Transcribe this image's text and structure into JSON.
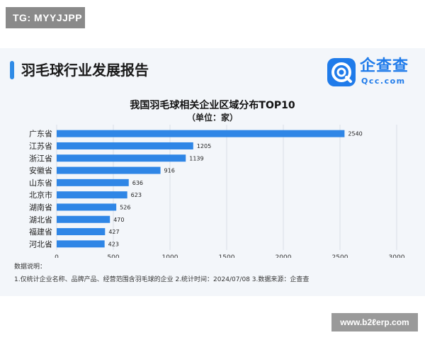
{
  "watermark_top": "TG: MYYJJPP",
  "watermark_bottom": "www.b2ℓerp.com",
  "header": {
    "title": "羽毛球行业发展报告"
  },
  "logo": {
    "name": "企查查",
    "sub": "Qcc.com"
  },
  "notes": {
    "heading": "数据说明：",
    "line": "1.仅统计企业名称、品牌产品、经营范围含羽毛球的企业  2.统计时间：2024/07/08  3.数据来源：企查查"
  },
  "colors": {
    "bar": "#2f86e6",
    "accent": "#2f8be6",
    "grid": "#d9dee5"
  },
  "chart_data": {
    "type": "bar",
    "orientation": "horizontal",
    "title": "我国羽毛球相关企业区域分布TOP10",
    "subtitle": "（单位：家）",
    "categories": [
      "广东省",
      "江苏省",
      "浙江省",
      "安徽省",
      "山东省",
      "北京市",
      "湖南省",
      "湖北省",
      "福建省",
      "河北省"
    ],
    "values": [
      2540,
      1205,
      1139,
      916,
      636,
      623,
      526,
      470,
      427,
      423
    ],
    "xlim": [
      0,
      3000
    ],
    "xticks": [
      0,
      500,
      1000,
      1500,
      2000,
      2500,
      3000
    ],
    "grid": "vertical",
    "data_labels": true,
    "legend": "none"
  }
}
